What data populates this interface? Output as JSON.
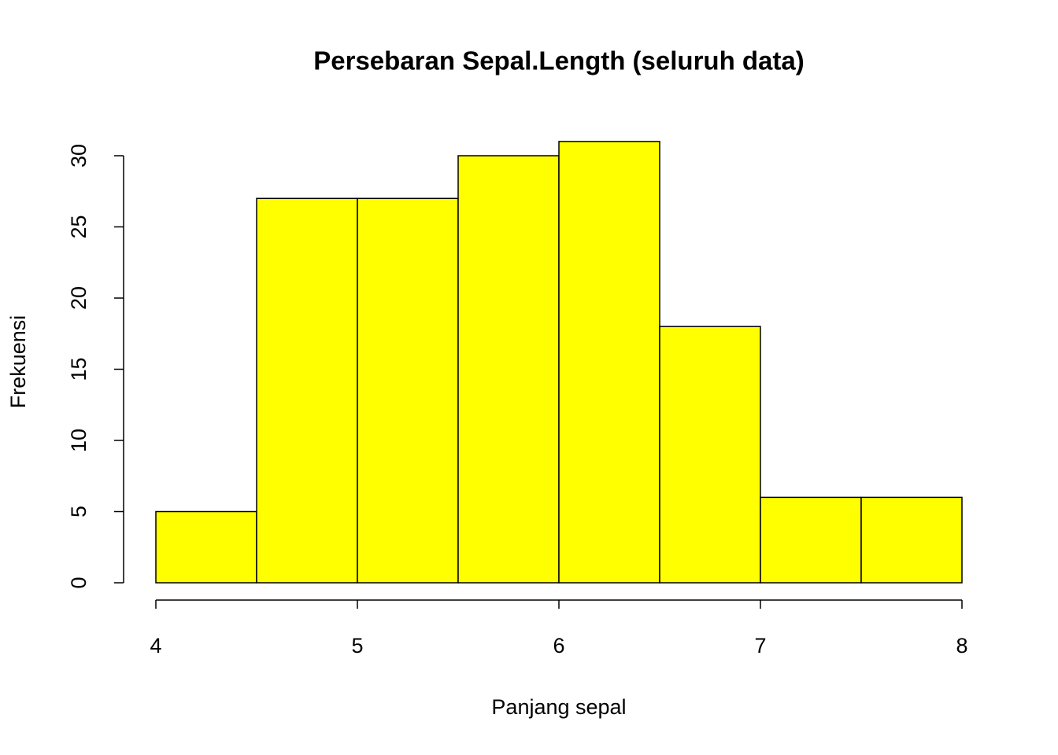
{
  "chart_data": {
    "type": "histogram",
    "title": "Persebaran Sepal.Length (seluruh data)",
    "x_label": "Panjang sepal",
    "y_label": "Frekuensi",
    "bins": [
      4,
      4.5,
      5,
      5.5,
      6,
      6.5,
      7,
      7.5,
      8
    ],
    "values": [
      5,
      27,
      27,
      30,
      31,
      18,
      6,
      6
    ],
    "color": "#ffff00",
    "xlim": [
      4,
      8
    ],
    "xticks": [
      4,
      5,
      6,
      7,
      8
    ],
    "ylim": [
      0,
      31
    ],
    "yticks": [
      0,
      5,
      10,
      15,
      20,
      25,
      30
    ]
  }
}
